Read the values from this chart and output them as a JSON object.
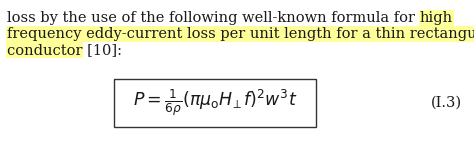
{
  "line1_normal": "loss by the use of the following well-known formula for ",
  "line1_highlight": "high",
  "line2": "frequency eddy-current loss per unit length for a thin rectangular",
  "line3": "conductor [10]:",
  "formula": "$P = \\frac{1}{6\\rho}(\\pi\\mu_{\\mathrm{o}} H_{\\!\\perp} f)^2 w^3 t$",
  "equation_number": "(I.3)",
  "highlight_color": "#FFFF99",
  "text_color": "#1a1a1a",
  "background_color": "#ffffff",
  "font_size": 10.5,
  "formula_font_size": 12.5,
  "eq_num_font_size": 10.5
}
